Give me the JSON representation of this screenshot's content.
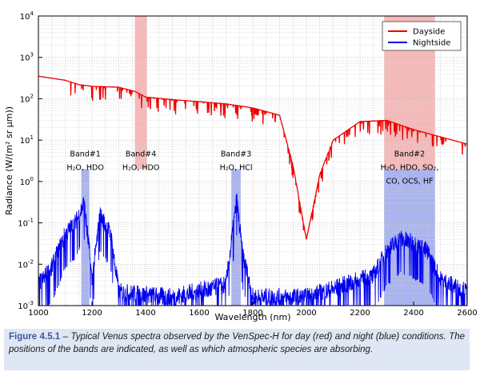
{
  "chart_data": {
    "type": "line",
    "xlabel": "Wavelength (nm)",
    "ylabel": "Radiance (W/(m² sr µm))",
    "xlim": [
      1000,
      2600
    ],
    "ylim": [
      0.001,
      10000
    ],
    "y_scale": "log",
    "grid": true,
    "legend_position": "top-right",
    "x_ticks": [
      "1000",
      "1200",
      "1400",
      "1600",
      "1800",
      "2000",
      "2200",
      "2400",
      "2600"
    ],
    "y_ticks": [
      {
        "base": "10",
        "exp": "-3"
      },
      {
        "base": "10",
        "exp": "-2"
      },
      {
        "base": "10",
        "exp": "-1"
      },
      {
        "base": "10",
        "exp": "0"
      },
      {
        "base": "10",
        "exp": "1"
      },
      {
        "base": "10",
        "exp": "2"
      },
      {
        "base": "10",
        "exp": "3"
      },
      {
        "base": "10",
        "exp": "4"
      }
    ],
    "bands": [
      {
        "name": "Band#1",
        "species": "H₂O, HDO",
        "species2": "",
        "range": [
          1160,
          1190
        ],
        "shade": "night",
        "color": "#aab4ee"
      },
      {
        "name": "Band#4",
        "species": "H₂O, HDO",
        "species2": "",
        "range": [
          1360,
          1405
        ],
        "shade": "day",
        "color": "#f6b9b9"
      },
      {
        "name": "Band#3",
        "species": "H₂O, HCl",
        "species2": "",
        "range": [
          1720,
          1755
        ],
        "shade": "night",
        "color": "#aab4ee"
      },
      {
        "name": "Band#2",
        "species": "H₂O, HDO, SO₂,",
        "species2": "CO, OCS, HF",
        "range": [
          2290,
          2480
        ],
        "shade": "both",
        "color": "#aab4ee",
        "day_color": "#f6b9b9"
      }
    ],
    "series": [
      {
        "name": "Dayside",
        "color": "#ee0000",
        "x": [
          1000,
          1100,
          1150,
          1200,
          1300,
          1360,
          1400,
          1500,
          1600,
          1700,
          1800,
          1900,
          1950,
          2000,
          2050,
          2100,
          2200,
          2300,
          2400,
          2500,
          2600
        ],
        "y": [
          350,
          280,
          220,
          200,
          190,
          150,
          110,
          95,
          85,
          75,
          60,
          40,
          2.5,
          0.04,
          1.5,
          10,
          28,
          30,
          18,
          12,
          8
        ]
      },
      {
        "name": "Nightside",
        "color": "#0000ee",
        "x": [
          1000,
          1050,
          1100,
          1140,
          1170,
          1190,
          1200,
          1230,
          1270,
          1300,
          1500,
          1700,
          1740,
          1760,
          1800,
          2000,
          2250,
          2300,
          2350,
          2400,
          2450,
          2500,
          2600
        ],
        "y": [
          0.003,
          0.008,
          0.05,
          0.1,
          0.3,
          0.02,
          0.004,
          0.15,
          0.05,
          0.002,
          0.0015,
          0.003,
          0.35,
          0.02,
          0.0015,
          0.0015,
          0.005,
          0.02,
          0.04,
          0.03,
          0.02,
          0.004,
          0.002
        ]
      }
    ]
  },
  "caption": {
    "figure_label": "Figure 4.5.1",
    "dash": " – ",
    "text": "Typical Venus spectra observed by the VenSpec-H for day (red) and night (blue) conditions. The positions of the bands are indicated, as well as which atmospheric species are absorbing."
  }
}
